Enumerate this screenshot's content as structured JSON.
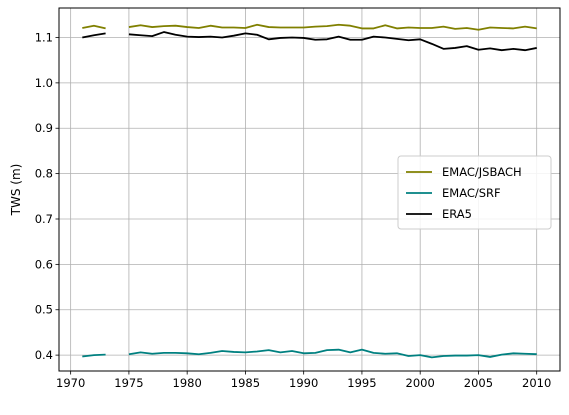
{
  "chart_data": {
    "type": "line",
    "title": "",
    "xlabel": "",
    "ylabel": "TWS (m)",
    "xlim": [
      1969,
      2012
    ],
    "ylim": [
      0.365,
      1.165
    ],
    "xticks": [
      1970,
      1975,
      1980,
      1985,
      1990,
      1995,
      2000,
      2005,
      2010
    ],
    "yticks": [
      0.4,
      0.5,
      0.6,
      0.7,
      0.8,
      0.9,
      1.0,
      1.1
    ],
    "grid": true,
    "legend_position": "center-right",
    "x": [
      1971,
      1972,
      1973,
      1974,
      1975,
      1976,
      1977,
      1978,
      1979,
      1980,
      1981,
      1982,
      1983,
      1984,
      1985,
      1986,
      1987,
      1988,
      1989,
      1990,
      1991,
      1992,
      1993,
      1994,
      1995,
      1996,
      1997,
      1998,
      1999,
      2000,
      2001,
      2002,
      2003,
      2004,
      2005,
      2006,
      2007,
      2008,
      2009,
      2010
    ],
    "series": [
      {
        "name": "EMAC/JSBACH",
        "color": "#808000",
        "values": [
          1.121,
          1.126,
          1.12,
          null,
          1.123,
          1.127,
          1.123,
          1.125,
          1.126,
          1.123,
          1.121,
          1.126,
          1.122,
          1.122,
          1.121,
          1.128,
          1.123,
          1.122,
          1.122,
          1.122,
          1.124,
          1.125,
          1.128,
          1.126,
          1.12,
          1.12,
          1.127,
          1.12,
          1.122,
          1.121,
          1.121,
          1.124,
          1.119,
          1.121,
          1.117,
          1.122,
          1.121,
          1.12,
          1.124,
          1.12
        ]
      },
      {
        "name": "EMAC/SRF",
        "color": "#008080",
        "values": [
          0.397,
          0.4,
          0.401,
          null,
          0.402,
          0.406,
          0.403,
          0.405,
          0.405,
          0.404,
          0.402,
          0.405,
          0.409,
          0.407,
          0.406,
          0.408,
          0.411,
          0.406,
          0.409,
          0.404,
          0.405,
          0.411,
          0.412,
          0.406,
          0.412,
          0.405,
          0.403,
          0.404,
          0.398,
          0.4,
          0.395,
          0.398,
          0.399,
          0.399,
          0.4,
          0.396,
          0.401,
          0.404,
          0.403,
          0.402
        ]
      },
      {
        "name": "ERA5",
        "color": "#000000",
        "values": [
          1.1,
          1.105,
          1.109,
          null,
          1.107,
          1.105,
          1.103,
          1.112,
          1.106,
          1.102,
          1.101,
          1.102,
          1.1,
          1.104,
          1.109,
          1.106,
          1.096,
          1.099,
          1.1,
          1.099,
          1.095,
          1.096,
          1.102,
          1.095,
          1.095,
          1.102,
          1.1,
          1.097,
          1.094,
          1.096,
          1.086,
          1.075,
          1.077,
          1.081,
          1.073,
          1.076,
          1.072,
          1.075,
          1.072,
          1.077
        ]
      }
    ]
  }
}
